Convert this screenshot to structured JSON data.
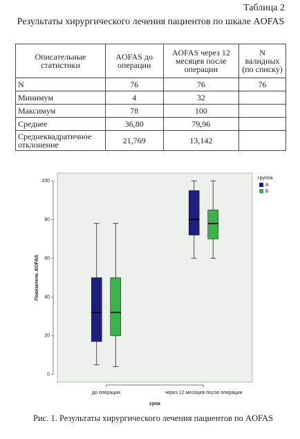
{
  "table_label": "Таблица 2",
  "table_title": "Результаты хирургического лечения пациентов по шкале AOFAS",
  "table": {
    "header": [
      "Описательные статистики",
      "AOFAS до операции",
      "AOFAS через 12 месяцев после операции",
      "N валидных (по списку)"
    ],
    "rows": [
      [
        "N",
        "76",
        "76",
        "76"
      ],
      [
        "Минимум",
        "4",
        "32",
        null
      ],
      [
        "Максимум",
        "78",
        "100",
        null
      ],
      [
        "Среднее",
        "36,80",
        "79,96",
        null
      ],
      [
        "Среднеквадратичное отклонение",
        "21,769",
        "13,142",
        null
      ]
    ]
  },
  "chart_data": {
    "type": "box",
    "x_label": "срок",
    "y_label": "Показатель AOFAS",
    "categories": [
      "до операции",
      "через 12 месяцев после операции"
    ],
    "legend_title": "группа",
    "series": [
      {
        "name": "А",
        "color": "#1c1f7c",
        "values": [
          {
            "min": 5,
            "q1": 17,
            "median": 32,
            "q3": 50,
            "max": 78
          },
          {
            "min": 60,
            "q1": 72,
            "median": 80,
            "q3": 95,
            "max": 100
          }
        ]
      },
      {
        "name": "Б",
        "color": "#3cb34a",
        "values": [
          {
            "min": 4,
            "q1": 20,
            "median": 32,
            "q3": 50,
            "max": 78
          },
          {
            "min": 60,
            "q1": 70,
            "median": 78,
            "q3": 85,
            "max": 100
          }
        ]
      }
    ],
    "ylim": [
      -4,
      104
    ],
    "yticks": [
      0,
      20,
      40,
      60,
      80,
      100
    ]
  },
  "caption": "Рис. 1. Результаты хирургического лечения пациентов по AOFAS"
}
